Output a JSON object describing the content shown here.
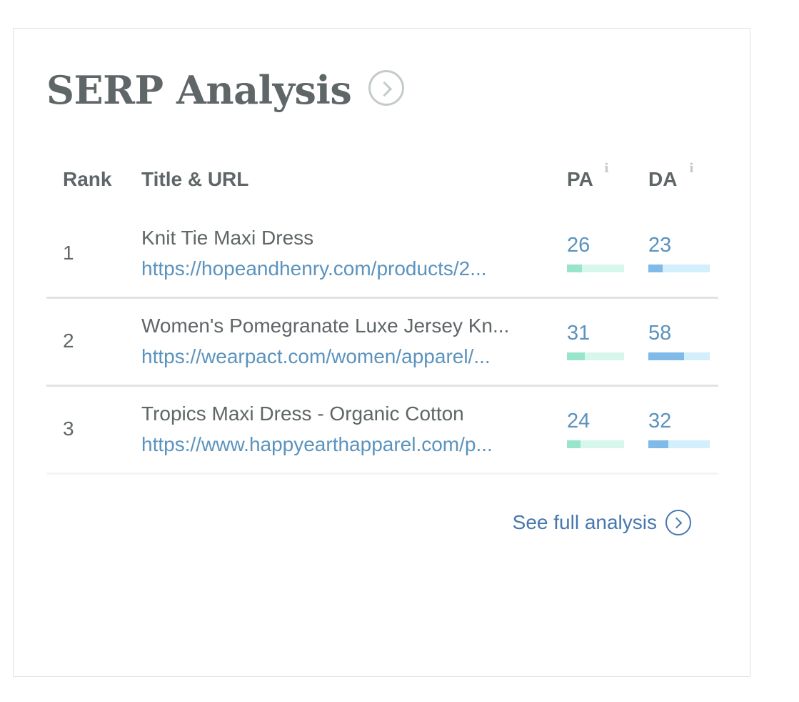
{
  "header": {
    "title": "SERP Analysis",
    "title_icon": "chevron-right-circle-icon"
  },
  "table": {
    "columns": {
      "rank": "Rank",
      "title_url": "Title & URL",
      "pa": "PA",
      "da": "DA",
      "info_icon": "i"
    },
    "rows": [
      {
        "rank": "1",
        "title": "Knit Tie Maxi Dress",
        "url": "https://hopeandhenry.com/products/2...",
        "pa": 26,
        "da": 23
      },
      {
        "rank": "2",
        "title": "Women's Pomegranate Luxe Jersey Kn...",
        "url": "https://wearpact.com/women/apparel/...",
        "pa": 31,
        "da": 58
      },
      {
        "rank": "3",
        "title": "Tropics Maxi Dress - Organic Cotton",
        "url": "https://www.happyearthapparel.com/p...",
        "pa": 24,
        "da": 32
      }
    ]
  },
  "footer": {
    "see_full": "See full analysis",
    "icon": "chevron-right-circle-icon"
  },
  "colors": {
    "pa_fill": "#98e5cb",
    "pa_track": "#d8f7ec",
    "da_fill": "#7fbae8",
    "da_track": "#d3effb",
    "link": "#5b93bd"
  }
}
